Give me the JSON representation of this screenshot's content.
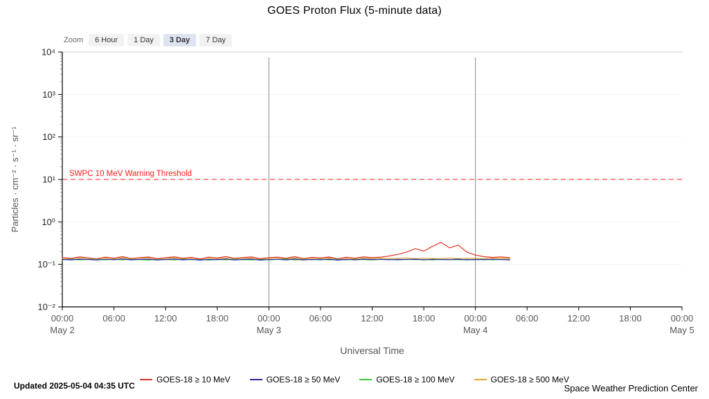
{
  "title": "GOES Proton Flux (5-minute data)",
  "zoom": {
    "label": "Zoom",
    "buttons": [
      {
        "label": "6 Hour",
        "selected": false
      },
      {
        "label": "1 Day",
        "selected": false
      },
      {
        "label": "3 Day",
        "selected": true
      },
      {
        "label": "7 Day",
        "selected": false
      }
    ]
  },
  "footer": {
    "updated": "Updated 2025-05-04 04:35 UTC",
    "credit": "Space Weather Prediction Center"
  },
  "chart_data": {
    "type": "line",
    "title": "GOES Proton Flux (5-minute data)",
    "xlabel": "Universal Time",
    "ylabel": "Particles · cm⁻² · s⁻¹ · sr⁻¹",
    "y_scale": "log",
    "ylim": [
      0.01,
      10000
    ],
    "grid": "faint horizontal decade lines, gray vertical lines at day boundaries",
    "legend_position": "bottom",
    "y_ticks": [
      {
        "value": 10000,
        "label": "10⁴"
      },
      {
        "value": 1000,
        "label": "10³"
      },
      {
        "value": 100,
        "label": "10²"
      },
      {
        "value": 10,
        "label": "10¹"
      },
      {
        "value": 1,
        "label": "10⁰"
      },
      {
        "value": 0.1,
        "label": "10⁻¹"
      },
      {
        "value": 0.01,
        "label": "10⁻²"
      }
    ],
    "x_range_hours": 72,
    "x_ticks": [
      {
        "hour": 0,
        "time": "00:00",
        "date": "May 2"
      },
      {
        "hour": 6,
        "time": "06:00"
      },
      {
        "hour": 12,
        "time": "12:00"
      },
      {
        "hour": 18,
        "time": "18:00"
      },
      {
        "hour": 24,
        "time": "00:00",
        "date": "May 3"
      },
      {
        "hour": 30,
        "time": "06:00"
      },
      {
        "hour": 36,
        "time": "12:00"
      },
      {
        "hour": 42,
        "time": "18:00"
      },
      {
        "hour": 48,
        "time": "00:00",
        "date": "May 4"
      },
      {
        "hour": 54,
        "time": "06:00"
      },
      {
        "hour": 60,
        "time": "12:00"
      },
      {
        "hour": 66,
        "time": "18:00"
      },
      {
        "hour": 72,
        "time": "00:00",
        "date": "May 5"
      }
    ],
    "day_boundary_hours": [
      24,
      48
    ],
    "threshold": {
      "value": 10,
      "label": "SWPC 10 MeV Warning Threshold",
      "color": "#ff1a1a",
      "style": "dashed"
    },
    "x_hours": [
      0,
      1,
      2,
      3,
      4,
      5,
      6,
      7,
      8,
      9,
      10,
      11,
      12,
      13,
      14,
      15,
      16,
      17,
      18,
      19,
      20,
      21,
      22,
      23,
      24,
      25,
      26,
      27,
      28,
      29,
      30,
      31,
      32,
      33,
      34,
      35,
      36,
      37,
      38,
      39,
      40,
      41,
      42,
      43,
      44,
      45,
      46,
      47,
      48,
      49,
      50,
      51,
      52
    ],
    "series": [
      {
        "name": "GOES-18 ≥ 10 MeV",
        "color": "#e03222",
        "values": [
          0.145,
          0.138,
          0.15,
          0.142,
          0.135,
          0.148,
          0.14,
          0.152,
          0.137,
          0.144,
          0.149,
          0.136,
          0.143,
          0.151,
          0.139,
          0.146,
          0.134,
          0.148,
          0.141,
          0.153,
          0.138,
          0.145,
          0.15,
          0.136,
          0.144,
          0.148,
          0.139,
          0.152,
          0.137,
          0.146,
          0.142,
          0.149,
          0.135,
          0.147,
          0.14,
          0.15,
          0.144,
          0.148,
          0.158,
          0.172,
          0.195,
          0.235,
          0.205,
          0.265,
          0.33,
          0.245,
          0.285,
          0.195,
          0.165,
          0.152,
          0.146,
          0.15,
          0.143
        ]
      },
      {
        "name": "GOES-18 ≥ 50 MeV",
        "color": "#2626a8",
        "values": [
          0.131,
          0.128,
          0.133,
          0.13,
          0.127,
          0.132,
          0.129,
          0.134,
          0.128,
          0.131,
          0.133,
          0.127,
          0.13,
          0.134,
          0.128,
          0.132,
          0.126,
          0.131,
          0.129,
          0.134,
          0.127,
          0.131,
          0.133,
          0.126,
          0.13,
          0.132,
          0.128,
          0.134,
          0.127,
          0.131,
          0.129,
          0.133,
          0.126,
          0.131,
          0.128,
          0.133,
          0.13,
          0.132,
          0.129,
          0.131,
          0.13,
          0.133,
          0.128,
          0.132,
          0.13,
          0.129,
          0.133,
          0.128,
          0.131,
          0.129,
          0.132,
          0.13,
          0.128
        ]
      },
      {
        "name": "GOES-18 ≥ 100 MeV",
        "color": "#45c43b",
        "values": [
          0.129,
          0.133,
          0.127,
          0.131,
          0.134,
          0.128,
          0.132,
          0.127,
          0.133,
          0.129,
          0.126,
          0.132,
          0.13,
          0.127,
          0.133,
          0.129,
          0.132,
          0.126,
          0.131,
          0.128,
          0.133,
          0.129,
          0.127,
          0.132,
          0.128,
          0.131,
          0.134,
          0.127,
          0.131,
          0.129,
          0.133,
          0.127,
          0.131,
          0.128,
          0.132,
          0.129,
          0.127,
          0.131,
          0.13,
          0.128,
          0.132,
          0.129,
          0.131,
          0.127,
          0.132,
          0.13,
          0.128,
          0.131,
          0.129,
          0.133,
          0.128,
          0.131,
          0.13
        ]
      },
      {
        "name": "GOES-18 ≥ 500 MeV",
        "color": "#dda433",
        "values": [
          0.14,
          0.136,
          0.142,
          0.138,
          0.135,
          0.141,
          0.137,
          0.143,
          0.136,
          0.14,
          0.142,
          0.135,
          0.139,
          0.143,
          0.136,
          0.141,
          0.134,
          0.14,
          0.137,
          0.142,
          0.136,
          0.139,
          0.141,
          0.135,
          0.139,
          0.142,
          0.136,
          0.141,
          0.135,
          0.14,
          0.138,
          0.141,
          0.134,
          0.14,
          0.136,
          0.141,
          0.138,
          0.14,
          0.137,
          0.139,
          0.141,
          0.136,
          0.14,
          0.138,
          0.136,
          0.141,
          0.137,
          0.14,
          0.138,
          0.136,
          0.141,
          0.138,
          0.139
        ]
      }
    ]
  }
}
